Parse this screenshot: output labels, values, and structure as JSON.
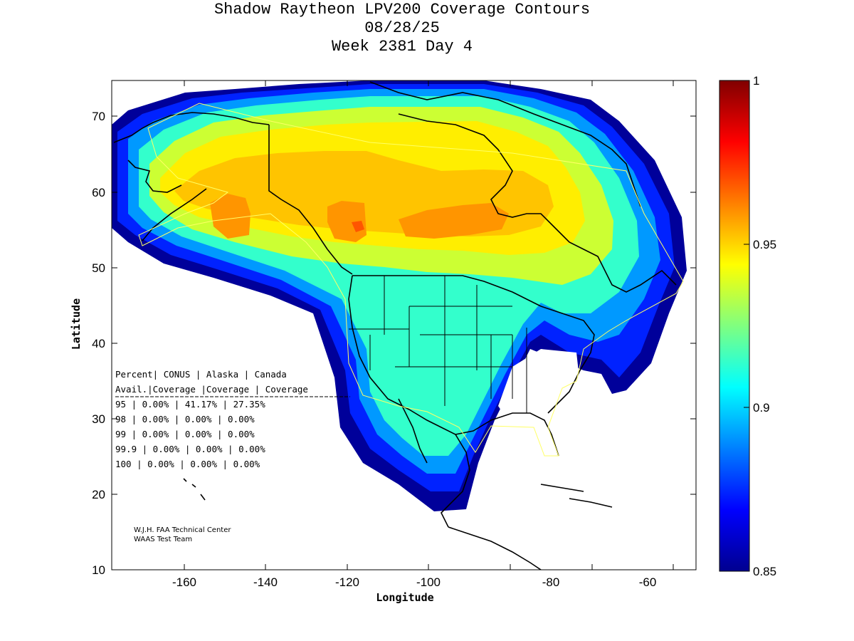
{
  "title": {
    "line1": "Shadow Raytheon LPV200 Coverage Contours",
    "line2": "08/28/25",
    "line3": "Week 2381 Day 4"
  },
  "map": {
    "xlabel": "Longitude",
    "ylabel": "Latitude",
    "xlim": [
      -174,
      -50
    ],
    "ylim": [
      10,
      75
    ],
    "xticks": [
      -160,
      -140,
      -120,
      -100,
      -80,
      -60
    ],
    "yticks": [
      10,
      20,
      30,
      40,
      50,
      60,
      70
    ],
    "xtick_labels": [
      "-160",
      "-140",
      "-120",
      "-100",
      "-80",
      "-60"
    ],
    "ytick_labels": [
      "10",
      "20",
      "30",
      "40",
      "50",
      "60",
      "70"
    ]
  },
  "colorbar": {
    "range": [
      0.85,
      1
    ],
    "ticks": [
      0.85,
      0.9,
      0.95,
      1
    ],
    "tick_labels": [
      "0.85",
      "0.9",
      "0.95",
      "1"
    ]
  },
  "stats_table": {
    "header1": "Percent| CONUS   | Alaska  | Canada",
    "header2": " Avail.|Coverage |Coverage | Coverage",
    "separator": "-----------------------------------------",
    "rows": [
      "  95   | 0.00%  | 41.17% | 27.35%",
      "  98   | 0.00%  | 0.00% | 0.00%",
      "  99   | 0.00%  | 0.00% | 0.00%",
      "99.9   | 0.00%  | 0.00% | 0.00%",
      " 100   | 0.00%  | 0.00% | 0.00%"
    ]
  },
  "credit": {
    "line1": "W.J.H. FAA Technical Center",
    "line2": "WAAS Test Team"
  }
}
